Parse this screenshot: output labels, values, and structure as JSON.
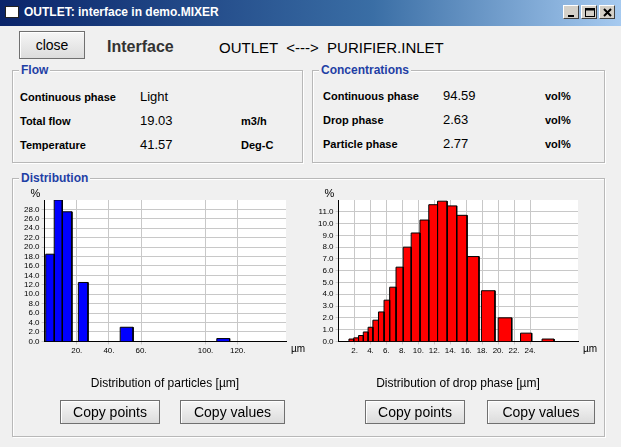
{
  "window": {
    "title": "OUTLET: interface in demo.MIXER"
  },
  "header": {
    "button": "close",
    "title": "Interface",
    "connection": "OUTLET  <--->  PURIFIER.INLET"
  },
  "flow": {
    "title": "Flow",
    "rows": [
      [
        "Continuous phase",
        "Light"
      ],
      [
        "Total flow",
        "19.03",
        "m3/h"
      ],
      [
        "Temperature",
        "41.57",
        "Deg-C"
      ]
    ]
  },
  "concentrations": {
    "title": "Concentrations",
    "rows": [
      [
        "Continuous phase",
        "94.59",
        "vol%"
      ],
      [
        "Drop phase",
        "2.63",
        "vol%"
      ],
      [
        "Particle phase",
        "2.77",
        "vol%"
      ]
    ]
  },
  "distribution": {
    "title": "Distribution",
    "buttons": [
      [
        "Copy points",
        "Copy values"
      ],
      [
        "Copy points",
        "Copy values"
      ]
    ]
  },
  "chart_data": [
    {
      "type": "histogram",
      "title": "Distribution of particles [µm]",
      "xlabel": "µm",
      "ylabel": "%",
      "bins": [
        0.7,
        6,
        11,
        17,
        21,
        27,
        47,
        55,
        107,
        115
      ],
      "values": [
        18.5,
        30.0,
        27.5,
        0,
        12.5,
        0,
        3.0,
        0,
        0.6
      ],
      "color": "#0000ff",
      "xlim": [
        0,
        150
      ],
      "xticks": [
        {
          "value": 20,
          "label": "20."
        },
        {
          "value": 40,
          "label": "40."
        },
        {
          "value": 60,
          "label": "60."
        },
        {
          "value": 100,
          "label": "100."
        },
        {
          "value": 120,
          "label": "120."
        }
      ],
      "ylim": [
        0,
        30
      ],
      "yticks": [
        {
          "value": 0,
          "label": "0.0"
        },
        {
          "value": 2,
          "label": "2.0"
        },
        {
          "value": 4,
          "label": "4.0"
        },
        {
          "value": 6,
          "label": "6.0"
        },
        {
          "value": 8,
          "label": "8.0"
        },
        {
          "value": 10,
          "label": "10.0"
        },
        {
          "value": 12,
          "label": "12.0"
        },
        {
          "value": 14,
          "label": "14.0"
        },
        {
          "value": 16,
          "label": "16.0"
        },
        {
          "value": 18,
          "label": "18.0"
        },
        {
          "value": 20,
          "label": "20.0"
        },
        {
          "value": 22,
          "label": "22.0"
        },
        {
          "value": 24,
          "label": "24.0"
        },
        {
          "value": 26,
          "label": "26.0"
        },
        {
          "value": 28,
          "label": "28.0"
        }
      ],
      "grid": true
    },
    {
      "type": "histogram",
      "title": "Distribution of drop phase [µm]",
      "xlabel": "µm",
      "ylabel": "%",
      "bins": [
        1.3,
        1.9,
        2.5,
        3.1,
        3.7,
        4.3,
        5.0,
        5.7,
        6.4,
        7.2,
        8.1,
        9.1,
        10.2,
        11.3,
        12.4,
        13.6,
        14.8,
        16.1,
        17.6,
        17.9,
        19.6,
        20.0,
        21.7,
        22.8,
        24.2,
        25.5,
        27.0
      ],
      "values": [
        0.2,
        0.3,
        0.5,
        0.8,
        1.2,
        1.8,
        2.5,
        3.5,
        4.6,
        6.3,
        8.0,
        9.2,
        10.3,
        11.6,
        11.9,
        11.5,
        10.7,
        7.2,
        0,
        4.3,
        0,
        2.0,
        0,
        0.7,
        0,
        0.2
      ],
      "color": "#ff0000",
      "xlim": [
        0,
        30
      ],
      "xticks": [
        {
          "value": 2,
          "label": "2."
        },
        {
          "value": 4,
          "label": "4."
        },
        {
          "value": 6,
          "label": "6."
        },
        {
          "value": 8,
          "label": "8."
        },
        {
          "value": 10,
          "label": "10."
        },
        {
          "value": 12,
          "label": "12."
        },
        {
          "value": 14,
          "label": "14."
        },
        {
          "value": 16,
          "label": "16."
        },
        {
          "value": 18,
          "label": "18."
        },
        {
          "value": 20,
          "label": "20."
        },
        {
          "value": 22,
          "label": "22."
        },
        {
          "value": 24,
          "label": "24."
        }
      ],
      "ylim": [
        0,
        12
      ],
      "yticks": [
        {
          "value": 0,
          "label": "0.0"
        },
        {
          "value": 1,
          "label": "1.0"
        },
        {
          "value": 2,
          "label": "2.0"
        },
        {
          "value": 3,
          "label": "3.0"
        },
        {
          "value": 4,
          "label": "4.0"
        },
        {
          "value": 5,
          "label": "5.0"
        },
        {
          "value": 6,
          "label": "6.0"
        },
        {
          "value": 7,
          "label": "7.0"
        },
        {
          "value": 8,
          "label": "8.0"
        },
        {
          "value": 9,
          "label": "9.0"
        },
        {
          "value": 10,
          "label": "10.0"
        },
        {
          "value": 11,
          "label": "11.0"
        }
      ],
      "grid": true
    }
  ]
}
